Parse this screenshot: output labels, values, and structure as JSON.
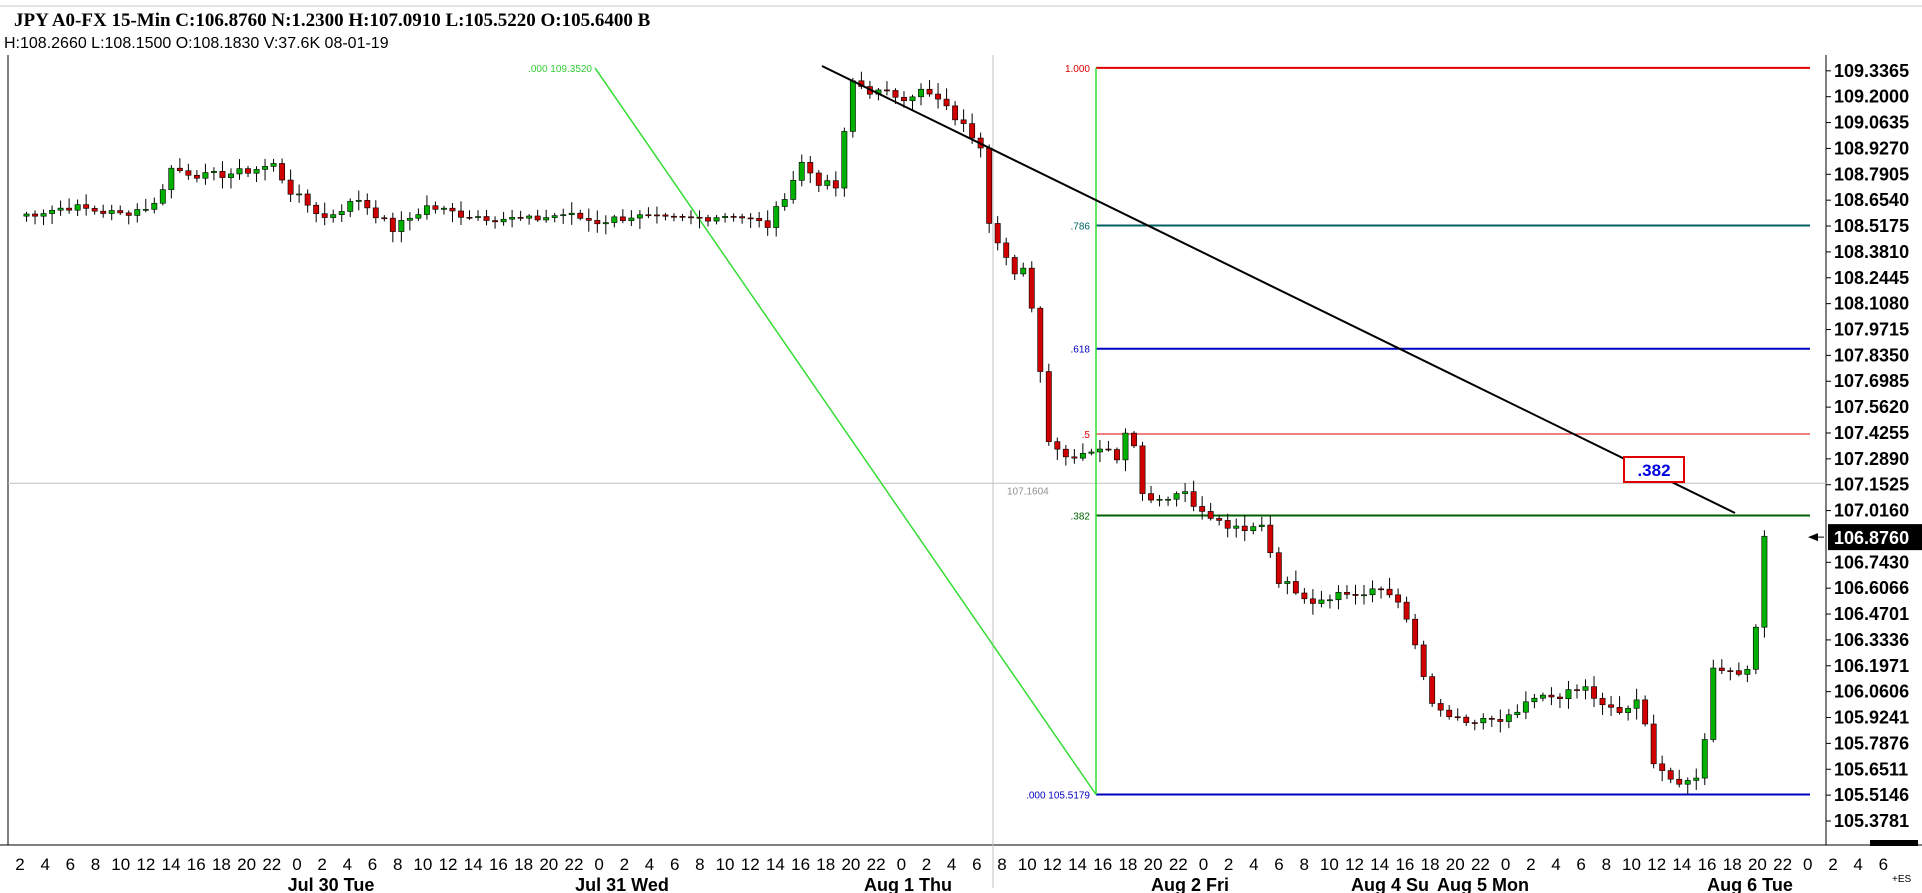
{
  "header": {
    "line1": "JPY A0-FX 15-Min C:106.8760 N:1.2300 H:107.0910 L:105.5220 O:105.6400 B",
    "line2": "H:108.2660 L:108.1500 O:108.1830 V:37.6K 08-01-19"
  },
  "colors": {
    "up_candle": "#00b000",
    "down_candle": "#d00000",
    "fib_1": "#e00000",
    "fib_786": "#006060",
    "fib_618": "#0000c0",
    "fib_5": "#e00000",
    "fib_382": "#006000",
    "fib_0": "#0000c0",
    "trendline": "#000000",
    "swing_line": "#33dd33",
    "last_price_bg": "#000000"
  },
  "chart_data": {
    "type": "candlestick",
    "symbol": "JPY A0-FX",
    "interval": "15-Min",
    "ylim": [
      105.32,
      109.42
    ],
    "y_ticks": [
      "109.3365",
      "109.2000",
      "109.0635",
      "108.9270",
      "108.7905",
      "108.6540",
      "108.5175",
      "108.3810",
      "108.2445",
      "108.1080",
      "107.9715",
      "107.8350",
      "107.6985",
      "107.5620",
      "107.4255",
      "107.2890",
      "107.1525",
      "107.0160",
      "106.7430",
      "106.6066",
      "106.4701",
      "106.3336",
      "106.1971",
      "106.0606",
      "105.9241",
      "105.7876",
      "105.6511",
      "105.5146",
      "105.3781"
    ],
    "last_price": "106.8760",
    "x_hour_ticks": [
      "2",
      "4",
      "6",
      "8",
      "10",
      "12",
      "14",
      "16",
      "18",
      "20",
      "22",
      "0",
      "2",
      "4",
      "6",
      "8",
      "10",
      "12",
      "14",
      "16",
      "18",
      "20",
      "22",
      "0",
      "2",
      "4",
      "6",
      "8",
      "10",
      "12",
      "14",
      "16",
      "18",
      "20",
      "22",
      "0",
      "2",
      "4",
      "6",
      "8",
      "10",
      "12",
      "14",
      "16",
      "18",
      "20",
      "22",
      "0",
      "2",
      "4",
      "6",
      "8",
      "10",
      "12",
      "14",
      "16",
      "18",
      "20",
      "22",
      "0",
      "2",
      "4",
      "6",
      "8",
      "10",
      "12",
      "14",
      "16",
      "18",
      "20",
      "22",
      "0",
      "2",
      "4",
      "6"
    ],
    "x_day_labels": [
      "Jul 30 Tue",
      "Jul 31 Wed",
      "Aug 1 Thu",
      "Aug 2 Fri",
      "Aug 4 Su",
      "Aug 5 Mon",
      "Aug 6 Tue"
    ],
    "price_path": [
      [
        0,
        108.57
      ],
      [
        6,
        108.62
      ],
      [
        12,
        108.58
      ],
      [
        16,
        108.63
      ],
      [
        18,
        108.82
      ],
      [
        22,
        108.78
      ],
      [
        26,
        108.8
      ],
      [
        30,
        108.84
      ],
      [
        32,
        108.7
      ],
      [
        36,
        108.56
      ],
      [
        40,
        108.66
      ],
      [
        44,
        108.5
      ],
      [
        48,
        108.62
      ],
      [
        52,
        108.58
      ],
      [
        56,
        108.56
      ],
      [
        60,
        108.55
      ],
      [
        64,
        108.58
      ],
      [
        68,
        108.54
      ],
      [
        72,
        108.57
      ],
      [
        76,
        108.55
      ],
      [
        80,
        108.56
      ],
      [
        84,
        108.58
      ],
      [
        88,
        108.52
      ],
      [
        90,
        108.68
      ],
      [
        92,
        108.85
      ],
      [
        94,
        108.75
      ],
      [
        96,
        108.72
      ],
      [
        97,
        109.0
      ],
      [
        98,
        109.28
      ],
      [
        100,
        109.23
      ],
      [
        104,
        109.2
      ],
      [
        106,
        109.23
      ],
      [
        108,
        109.18
      ],
      [
        110,
        109.09
      ],
      [
        113,
        108.95
      ],
      [
        114,
        108.55
      ],
      [
        116,
        108.35
      ],
      [
        117,
        108.25
      ],
      [
        118,
        108.28
      ],
      [
        119,
        108.1
      ],
      [
        120,
        107.75
      ],
      [
        121,
        107.4
      ],
      [
        123,
        107.3
      ],
      [
        127,
        107.35
      ],
      [
        129,
        107.3
      ],
      [
        130,
        107.44
      ],
      [
        131,
        107.38
      ],
      [
        132,
        107.1
      ],
      [
        134,
        107.08
      ],
      [
        137,
        107.12
      ],
      [
        139,
        107.0
      ],
      [
        142,
        106.93
      ],
      [
        144,
        106.9
      ],
      [
        146,
        106.95
      ],
      [
        147,
        106.8
      ],
      [
        148,
        106.65
      ],
      [
        150,
        106.6
      ],
      [
        152,
        106.54
      ],
      [
        155,
        106.58
      ],
      [
        158,
        106.57
      ],
      [
        160,
        106.6
      ],
      [
        162,
        106.55
      ],
      [
        164,
        106.3
      ],
      [
        166,
        105.98
      ],
      [
        168,
        105.93
      ],
      [
        170,
        105.88
      ],
      [
        172,
        105.92
      ],
      [
        174,
        105.89
      ],
      [
        176,
        105.95
      ],
      [
        178,
        106.02
      ],
      [
        182,
        106.05
      ],
      [
        184,
        106.08
      ],
      [
        186,
        105.98
      ],
      [
        188,
        105.95
      ],
      [
        190,
        106.0
      ],
      [
        191,
        105.88
      ],
      [
        192,
        105.7
      ],
      [
        194,
        105.6
      ],
      [
        195,
        105.55
      ],
      [
        197,
        105.62
      ],
      [
        198,
        105.8
      ],
      [
        199,
        106.2
      ],
      [
        201,
        106.17
      ],
      [
        202,
        106.16
      ],
      [
        203,
        106.2
      ],
      [
        204,
        106.38
      ],
      [
        205,
        106.88
      ]
    ],
    "fib_levels": [
      {
        "label": "1.000",
        "price": 109.352
      },
      {
        "label": ".786",
        "price": 108.52
      },
      {
        "label": ".618",
        "price": 107.87
      },
      {
        "label": ".5",
        "price": 107.42
      },
      {
        "label": ".382",
        "price": 106.99
      },
      {
        "label": ".000 105.5179",
        "price": 105.5179
      }
    ],
    "fib_top_label": ".000 109.3520",
    "crosshair_price_label": "107.1604",
    "callout_label": ".382",
    "corner_label": "+ES"
  }
}
